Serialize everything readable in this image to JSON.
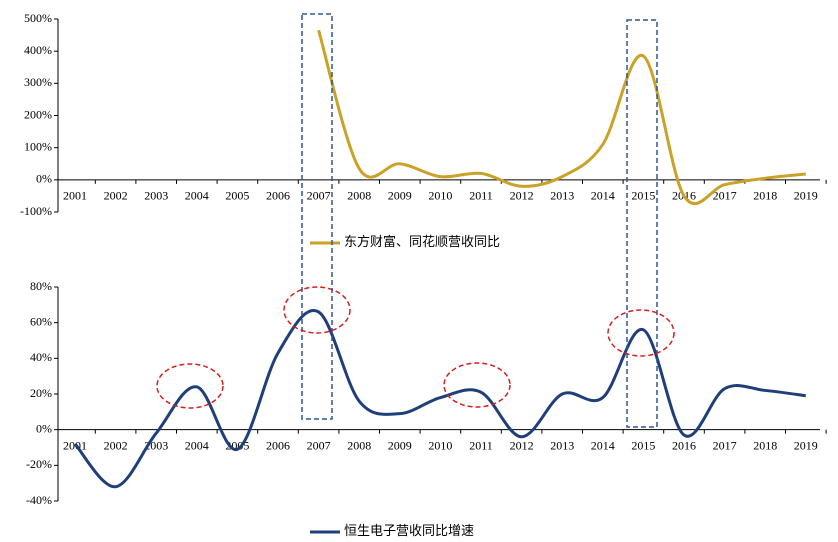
{
  "chart_data": [
    {
      "type": "line",
      "categories": [
        "2001",
        "2002",
        "2003",
        "2004",
        "2005",
        "2006",
        "2007",
        "2008",
        "2009",
        "2010",
        "2011",
        "2012",
        "2013",
        "2014",
        "2015",
        "2016",
        "2017",
        "2018",
        "2019"
      ],
      "series": [
        {
          "name": "东方财富、同花顺营收同比",
          "color": "#c9a227",
          "values": [
            null,
            null,
            null,
            null,
            null,
            null,
            465,
            35,
            50,
            10,
            20,
            -20,
            10,
            110,
            385,
            -50,
            -15,
            5,
            18
          ]
        }
      ],
      "ylim": [
        -100,
        500
      ],
      "yticks": [
        {
          "value": -100,
          "label": "-100%"
        },
        {
          "value": 0,
          "label": "0%"
        },
        {
          "value": 100,
          "label": "100%"
        },
        {
          "value": 200,
          "label": "200%"
        },
        {
          "value": 300,
          "label": "300%"
        },
        {
          "value": 400,
          "label": "400%"
        },
        {
          "value": 500,
          "label": "500%"
        }
      ]
    },
    {
      "type": "line",
      "categories": [
        "2001",
        "2002",
        "2003",
        "2004",
        "2005",
        "2006",
        "2007",
        "2008",
        "2009",
        "2010",
        "2011",
        "2012",
        "2013",
        "2014",
        "2015",
        "2016",
        "2017",
        "2018",
        "2019"
      ],
      "series": [
        {
          "name": "恒生电子营收同比增速",
          "color": "#1f3f7a",
          "values": [
            -8,
            -32,
            -2,
            24,
            -11,
            43,
            66,
            16,
            9,
            18,
            21,
            -4,
            20,
            18,
            56,
            -3,
            23,
            22,
            19
          ]
        }
      ],
      "ylim": [
        -40,
        80
      ],
      "yticks": [
        {
          "value": -40,
          "label": "-40%"
        },
        {
          "value": -20,
          "label": "-20%"
        },
        {
          "value": 0,
          "label": "0%"
        },
        {
          "value": 20,
          "label": "20%"
        },
        {
          "value": 40,
          "label": "40%"
        },
        {
          "value": 60,
          "label": "60%"
        },
        {
          "value": 80,
          "label": "80%"
        }
      ]
    }
  ]
}
